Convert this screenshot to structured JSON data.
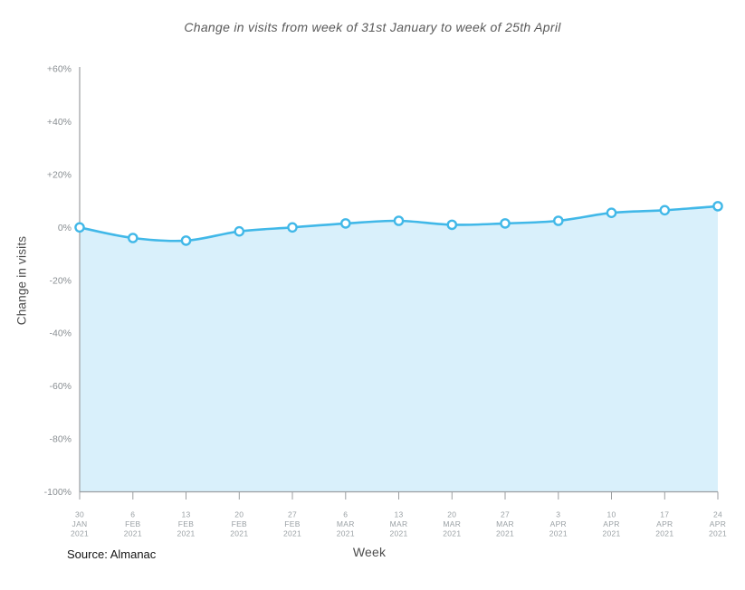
{
  "page": {
    "background": "#ffffff"
  },
  "chart_data": {
    "type": "area",
    "title": "Change in visits from week of 31st January to week of 25th April",
    "xlabel": "Week",
    "ylabel": "Change in visits",
    "source": "Source: Almanac",
    "categories": [
      "30 JAN 2021",
      "6 FEB 2021",
      "13 FEB 2021",
      "20 FEB 2021",
      "27 FEB 2021",
      "6 MAR 2021",
      "13 MAR 2021",
      "20 MAR 2021",
      "27 MAR 2021",
      "3 APR 2021",
      "10 APR 2021",
      "17 APR 2021",
      "24 APR 2021"
    ],
    "x_ticks": [
      [
        "30",
        "JAN",
        "2021"
      ],
      [
        "6",
        "FEB",
        "2021"
      ],
      [
        "13",
        "FEB",
        "2021"
      ],
      [
        "20",
        "FEB",
        "2021"
      ],
      [
        "27",
        "FEB",
        "2021"
      ],
      [
        "6",
        "MAR",
        "2021"
      ],
      [
        "13",
        "MAR",
        "2021"
      ],
      [
        "20",
        "MAR",
        "2021"
      ],
      [
        "27",
        "MAR",
        "2021"
      ],
      [
        "3",
        "APR",
        "2021"
      ],
      [
        "10",
        "APR",
        "2021"
      ],
      [
        "17",
        "APR",
        "2021"
      ],
      [
        "24",
        "APR",
        "2021"
      ]
    ],
    "values": [
      0,
      -4,
      -5,
      -1.5,
      0,
      1.5,
      2.5,
      1,
      1.5,
      2.5,
      5.5,
      6.5,
      8
    ],
    "unit": "%",
    "ylim": [
      -100,
      60
    ],
    "y_ticks": {
      "values": [
        60,
        40,
        20,
        0,
        -20,
        -40,
        -60,
        -80,
        -100
      ],
      "labels": [
        "+60%",
        "+40%",
        "+20%",
        "0%",
        "-20%",
        "-40%",
        "-60%",
        "-80%",
        "-100%"
      ]
    },
    "grid": false,
    "legend": false,
    "marker": "open-circle",
    "colors": {
      "line": "#41b8e8",
      "area_fill": "#d9f0fb",
      "marker_fill": "#ffffff",
      "axis_line": "#9b9ea1",
      "x_tick_label": "#9aa0a4",
      "y_tick_label": "#898e92",
      "title": "#595959",
      "axis_title": "#4d4d4d",
      "source_text": "#141414"
    }
  }
}
